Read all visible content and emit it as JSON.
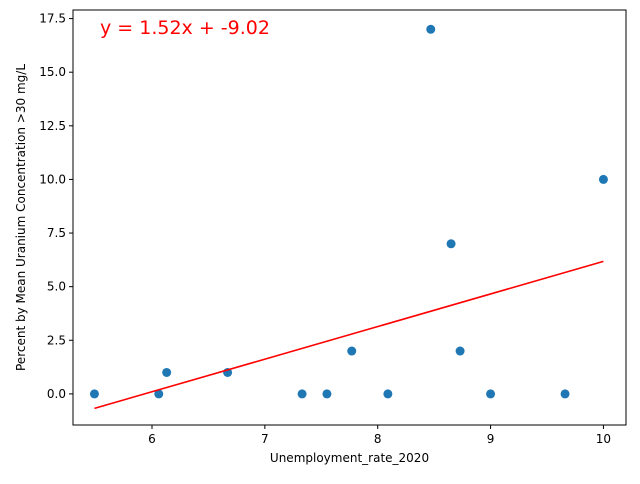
{
  "chart_data": {
    "type": "scatter",
    "xlabel": "Unemployment_rate_2020",
    "ylabel": "Percent by Mean Uranium Concentration >30 mg/L",
    "annotation": "y = 1.52x + -9.02",
    "xlim": [
      5.3,
      10.2
    ],
    "ylim": [
      -1.45,
      17.9
    ],
    "x_ticks": [
      6,
      7,
      8,
      9,
      10
    ],
    "x_tick_labels": [
      "6",
      "7",
      "8",
      "9",
      "10"
    ],
    "y_ticks": [
      0,
      2.5,
      5,
      7.5,
      10,
      12.5,
      15,
      17.5
    ],
    "y_tick_labels": [
      "0.0",
      "2.5",
      "5.0",
      "7.5",
      "10.0",
      "12.5",
      "15.0",
      "17.5"
    ],
    "grid": false,
    "series": [
      {
        "type": "scatter",
        "color": "#1f77b4",
        "points": [
          {
            "x": 5.49,
            "y": 0
          },
          {
            "x": 6.06,
            "y": 0
          },
          {
            "x": 6.13,
            "y": 1
          },
          {
            "x": 6.67,
            "y": 1
          },
          {
            "x": 7.33,
            "y": 0
          },
          {
            "x": 7.55,
            "y": 0
          },
          {
            "x": 7.77,
            "y": 2
          },
          {
            "x": 8.09,
            "y": 0
          },
          {
            "x": 8.47,
            "y": 17
          },
          {
            "x": 8.65,
            "y": 7
          },
          {
            "x": 8.73,
            "y": 2
          },
          {
            "x": 9.0,
            "y": 0
          },
          {
            "x": 9.66,
            "y": 0
          },
          {
            "x": 10.0,
            "y": 10
          }
        ]
      },
      {
        "type": "fit-line",
        "color": "#ff0000",
        "slope": 1.52,
        "intercept": -9.02,
        "x_range": [
          5.49,
          10.0
        ]
      }
    ]
  }
}
